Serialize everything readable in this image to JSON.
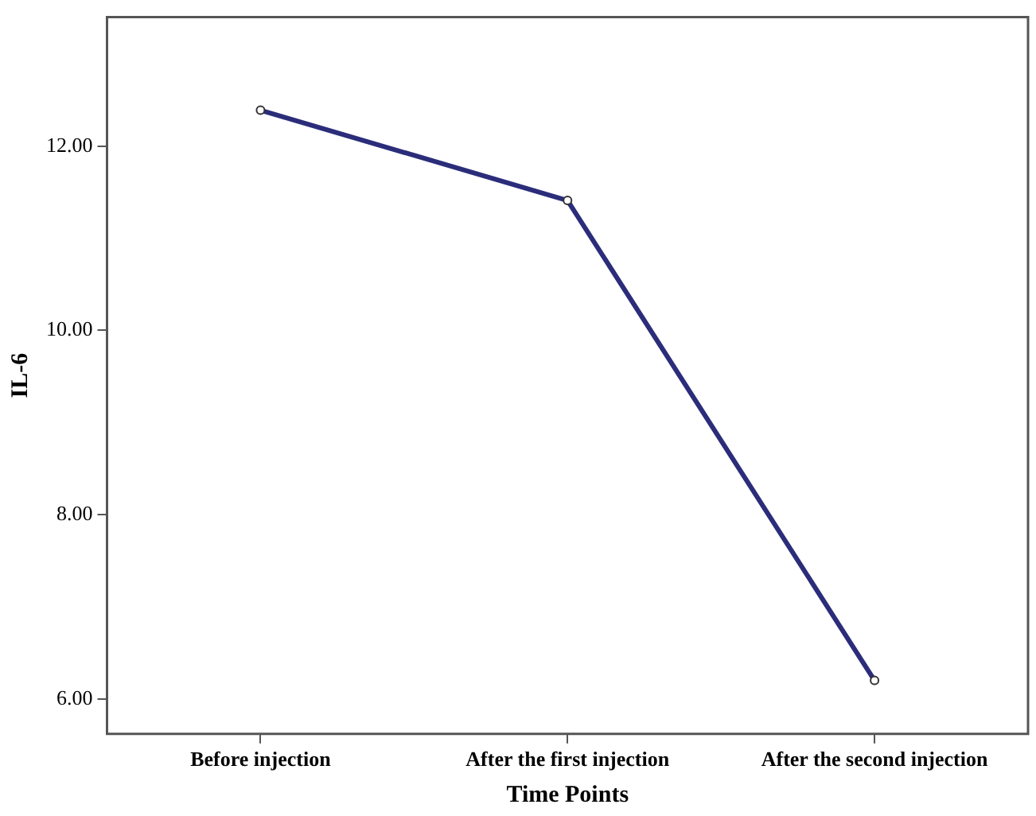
{
  "chart_data": {
    "type": "line",
    "xlabel": "Time Points",
    "ylabel": "IL-6",
    "categories": [
      "Before injection",
      "After the first injection",
      "After the second injection"
    ],
    "series": [
      {
        "color": "#2b2d7a",
        "values": [
          12.39,
          11.41,
          6.2
        ]
      }
    ],
    "ylim": [
      5.62,
      13.4
    ],
    "yticks": [
      {
        "value": 6,
        "label": "6.00"
      },
      {
        "value": 8,
        "label": "8.00"
      },
      {
        "value": 10,
        "label": "10.00"
      },
      {
        "value": 12,
        "label": "12.00"
      }
    ],
    "grid": false,
    "legend": false,
    "marker": "circle",
    "line_style": "solid"
  }
}
